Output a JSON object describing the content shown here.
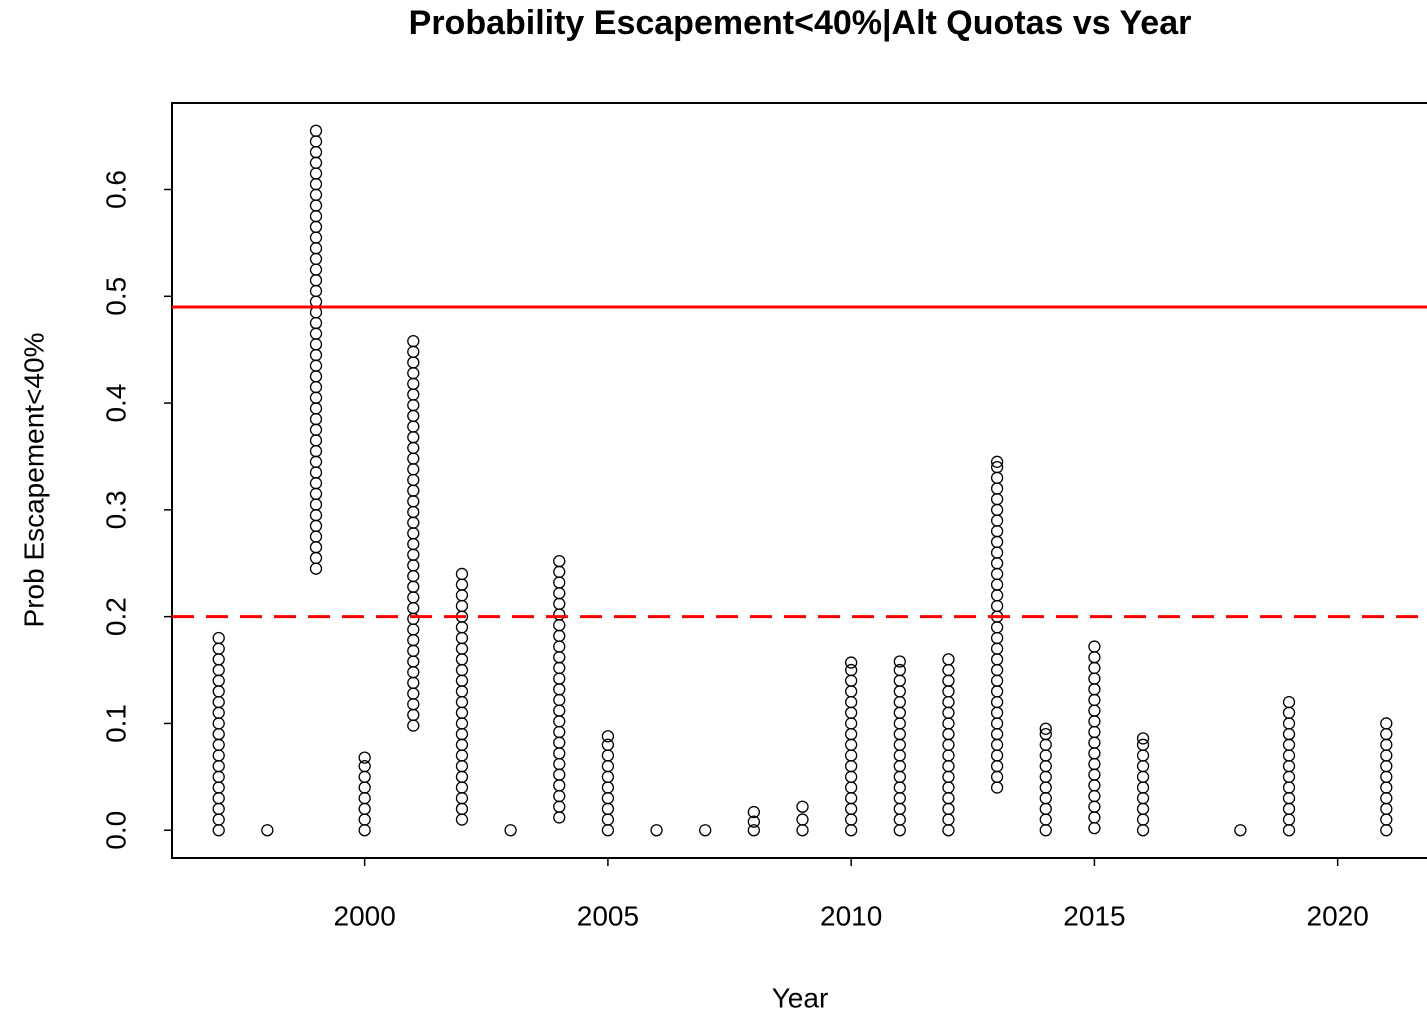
{
  "chart_data": {
    "type": "scatter",
    "title": "Probability Escapement<40%|Alt Quotas vs Year",
    "x_label": "Year",
    "y_label": "Prob Escapement<40%",
    "xlim": [
      1996.04,
      2021.96
    ],
    "ylim": [
      -0.026,
      0.681
    ],
    "xticks": [
      2000,
      2005,
      2010,
      2015,
      2020
    ],
    "yticks": [
      {
        "value": 0,
        "label": "0.0"
      },
      0.1,
      0.2,
      0.3,
      0.4,
      0.5,
      0.6
    ],
    "color": "#000000",
    "x": [
      1997,
      1998,
      1999,
      2000,
      2001,
      2002,
      2003,
      2004,
      2005,
      2006,
      2007,
      2008,
      2009,
      2010,
      2011,
      2012,
      2013,
      2014,
      2015,
      2016,
      2018,
      2019,
      2021
    ],
    "values": [
      [
        0,
        0.01,
        0.02,
        0.03,
        0.04,
        0.05,
        0.06,
        0.07,
        0.08,
        0.09,
        0.1,
        0.11,
        0.12,
        0.13,
        0.14,
        0.15,
        0.16,
        0.17,
        0.18
      ],
      [
        0
      ],
      [
        0.245,
        0.255,
        0.265,
        0.275,
        0.285,
        0.295,
        0.305,
        0.315,
        0.325,
        0.335,
        0.345,
        0.355,
        0.365,
        0.375,
        0.385,
        0.395,
        0.405,
        0.415,
        0.425,
        0.435,
        0.445,
        0.455,
        0.465,
        0.475,
        0.485,
        0.495,
        0.505,
        0.515,
        0.525,
        0.535,
        0.545,
        0.555,
        0.565,
        0.575,
        0.585,
        0.595,
        0.605,
        0.615,
        0.625,
        0.635,
        0.645,
        0.655
      ],
      [
        0,
        0.01,
        0.02,
        0.03,
        0.04,
        0.05,
        0.06,
        0.068
      ],
      [
        0.098,
        0.108,
        0.118,
        0.128,
        0.138,
        0.148,
        0.158,
        0.168,
        0.178,
        0.188,
        0.198,
        0.208,
        0.218,
        0.228,
        0.238,
        0.248,
        0.258,
        0.268,
        0.278,
        0.288,
        0.298,
        0.308,
        0.318,
        0.328,
        0.338,
        0.348,
        0.358,
        0.368,
        0.378,
        0.388,
        0.398,
        0.408,
        0.418,
        0.428,
        0.438,
        0.448,
        0.458
      ],
      [
        0.01,
        0.02,
        0.03,
        0.04,
        0.05,
        0.06,
        0.07,
        0.08,
        0.09,
        0.1,
        0.11,
        0.12,
        0.13,
        0.14,
        0.15,
        0.16,
        0.17,
        0.18,
        0.19,
        0.2,
        0.21,
        0.22,
        0.23,
        0.24
      ],
      [
        0
      ],
      [
        0.012,
        0.022,
        0.032,
        0.042,
        0.052,
        0.062,
        0.072,
        0.082,
        0.092,
        0.102,
        0.112,
        0.122,
        0.132,
        0.142,
        0.152,
        0.162,
        0.172,
        0.182,
        0.192,
        0.202,
        0.212,
        0.222,
        0.232,
        0.242,
        0.252
      ],
      [
        0,
        0.01,
        0.02,
        0.03,
        0.04,
        0.05,
        0.06,
        0.07,
        0.08,
        0.088
      ],
      [
        0
      ],
      [
        0
      ],
      [
        0,
        0.008,
        0.017
      ],
      [
        0,
        0.01,
        0.022
      ],
      [
        0,
        0.01,
        0.02,
        0.03,
        0.04,
        0.05,
        0.06,
        0.07,
        0.08,
        0.09,
        0.1,
        0.11,
        0.12,
        0.13,
        0.14,
        0.15,
        0.157
      ],
      [
        0,
        0.01,
        0.02,
        0.03,
        0.04,
        0.05,
        0.06,
        0.07,
        0.08,
        0.09,
        0.1,
        0.11,
        0.12,
        0.13,
        0.14,
        0.15,
        0.158
      ],
      [
        0,
        0.01,
        0.02,
        0.03,
        0.04,
        0.05,
        0.06,
        0.07,
        0.08,
        0.09,
        0.1,
        0.11,
        0.12,
        0.13,
        0.14,
        0.15,
        0.16
      ],
      [
        0.04,
        0.05,
        0.06,
        0.07,
        0.08,
        0.09,
        0.1,
        0.11,
        0.12,
        0.13,
        0.14,
        0.15,
        0.16,
        0.17,
        0.18,
        0.19,
        0.2,
        0.21,
        0.22,
        0.23,
        0.24,
        0.25,
        0.26,
        0.27,
        0.28,
        0.29,
        0.3,
        0.31,
        0.32,
        0.33,
        0.34,
        0.345
      ],
      [
        0,
        0.01,
        0.02,
        0.03,
        0.04,
        0.05,
        0.06,
        0.07,
        0.08,
        0.09,
        0.095
      ],
      [
        0.002,
        0.012,
        0.022,
        0.032,
        0.042,
        0.052,
        0.062,
        0.072,
        0.082,
        0.092,
        0.102,
        0.112,
        0.122,
        0.132,
        0.142,
        0.152,
        0.162,
        0.172
      ],
      [
        0,
        0.01,
        0.02,
        0.03,
        0.04,
        0.05,
        0.06,
        0.07,
        0.08,
        0.086
      ],
      [
        0
      ],
      [
        0,
        0.01,
        0.02,
        0.03,
        0.04,
        0.05,
        0.06,
        0.07,
        0.08,
        0.09,
        0.1,
        0.11,
        0.12
      ],
      [
        0,
        0.01,
        0.02,
        0.03,
        0.04,
        0.05,
        0.06,
        0.07,
        0.08,
        0.09,
        0.1
      ]
    ],
    "hlines": [
      {
        "value": 0.49,
        "color": "#ff0000",
        "style": "solid"
      },
      {
        "value": 0.2,
        "color": "#ff0000",
        "style": "dashed"
      }
    ]
  }
}
